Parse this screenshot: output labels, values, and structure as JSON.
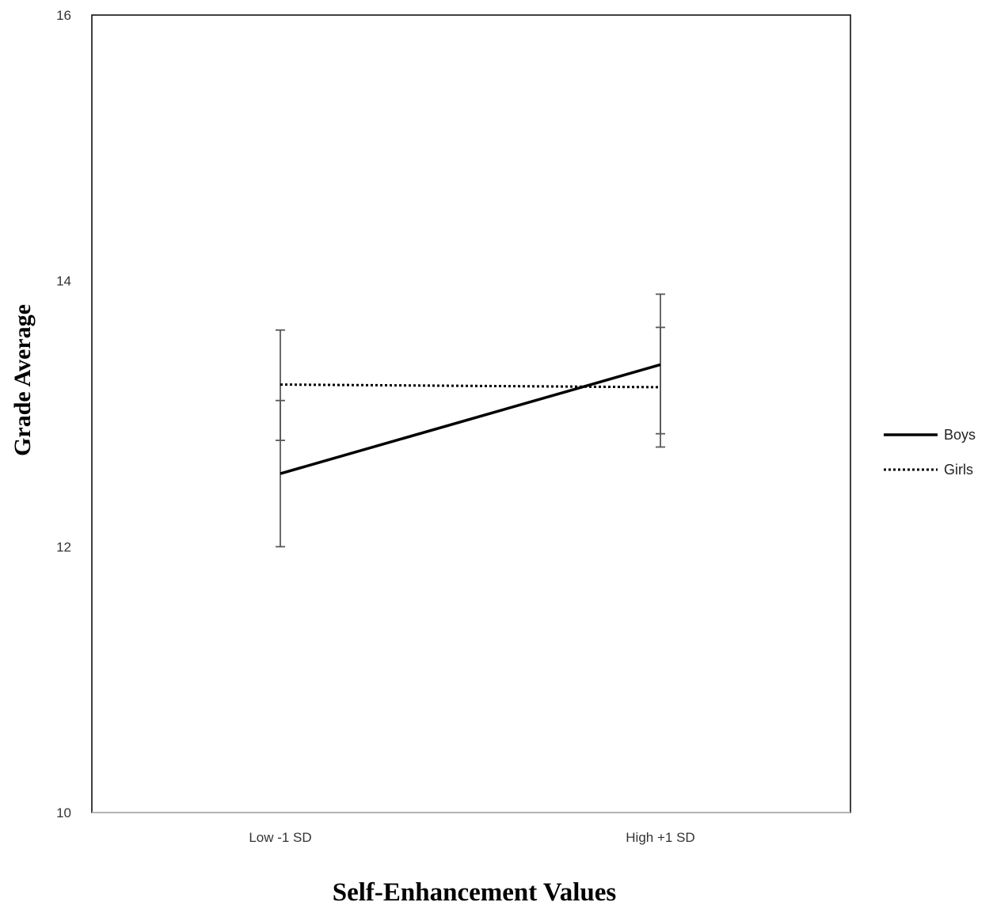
{
  "chart_data": {
    "type": "line",
    "categories": [
      "Low -1 SD",
      "High +1 SD"
    ],
    "xlabel": "Self-Enhancement Values",
    "ylabel": "Grade Average",
    "ylim": [
      10,
      16
    ],
    "yticks": [
      "10",
      "12",
      "14",
      "16"
    ],
    "grid": false,
    "legend_position": "right",
    "series": [
      {
        "name": "Boys",
        "style": "solid",
        "color": "#000000",
        "values": [
          12.55,
          13.37
        ],
        "error_low": [
          12.0,
          12.75
        ],
        "error_high": [
          13.63,
          13.9
        ]
      },
      {
        "name": "Girls",
        "style": "dotted",
        "color": "#000000",
        "values": [
          13.22,
          13.2
        ],
        "error_low": [
          12.8,
          12.85
        ],
        "error_high": [
          13.1,
          13.65
        ]
      }
    ],
    "error_bar_color": "#595959"
  }
}
